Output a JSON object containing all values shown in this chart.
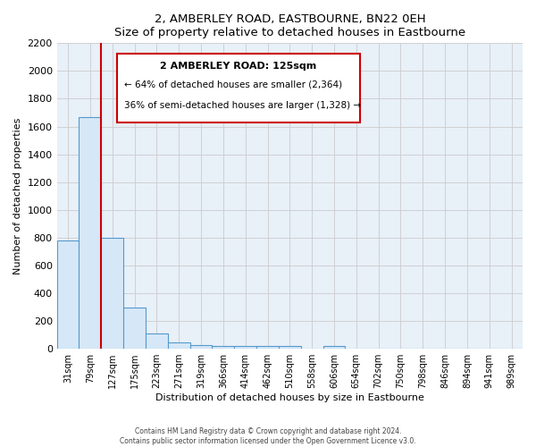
{
  "title": "2, AMBERLEY ROAD, EASTBOURNE, BN22 0EH",
  "subtitle": "Size of property relative to detached houses in Eastbourne",
  "xlabel": "Distribution of detached houses by size in Eastbourne",
  "ylabel": "Number of detached properties",
  "bar_labels": [
    "31sqm",
    "79sqm",
    "127sqm",
    "175sqm",
    "223sqm",
    "271sqm",
    "319sqm",
    "366sqm",
    "414sqm",
    "462sqm",
    "510sqm",
    "558sqm",
    "606sqm",
    "654sqm",
    "702sqm",
    "750sqm",
    "798sqm",
    "846sqm",
    "894sqm",
    "941sqm",
    "989sqm"
  ],
  "bar_values": [
    780,
    1670,
    800,
    295,
    110,
    45,
    30,
    20,
    20,
    20,
    20,
    0,
    20,
    0,
    0,
    0,
    0,
    0,
    0,
    0,
    0
  ],
  "bar_color": "#d6e8f7",
  "bar_edge_color": "#5599cc",
  "property_line_color": "#cc0000",
  "property_line_index": 1.5,
  "annotation_title": "2 AMBERLEY ROAD: 125sqm",
  "annotation_line1": "← 64% of detached houses are smaller (2,364)",
  "annotation_line2": "36% of semi-detached houses are larger (1,328) →",
  "annotation_box_color": "#ffffff",
  "annotation_box_edge_color": "#cc0000",
  "ylim": [
    0,
    2200
  ],
  "yticks": [
    0,
    200,
    400,
    600,
    800,
    1000,
    1200,
    1400,
    1600,
    1800,
    2000,
    2200
  ],
  "grid_color": "#cccccc",
  "plot_bg_color": "#e8f0f8",
  "footer_line1": "Contains HM Land Registry data © Crown copyright and database right 2024.",
  "footer_line2": "Contains public sector information licensed under the Open Government Licence v3.0."
}
